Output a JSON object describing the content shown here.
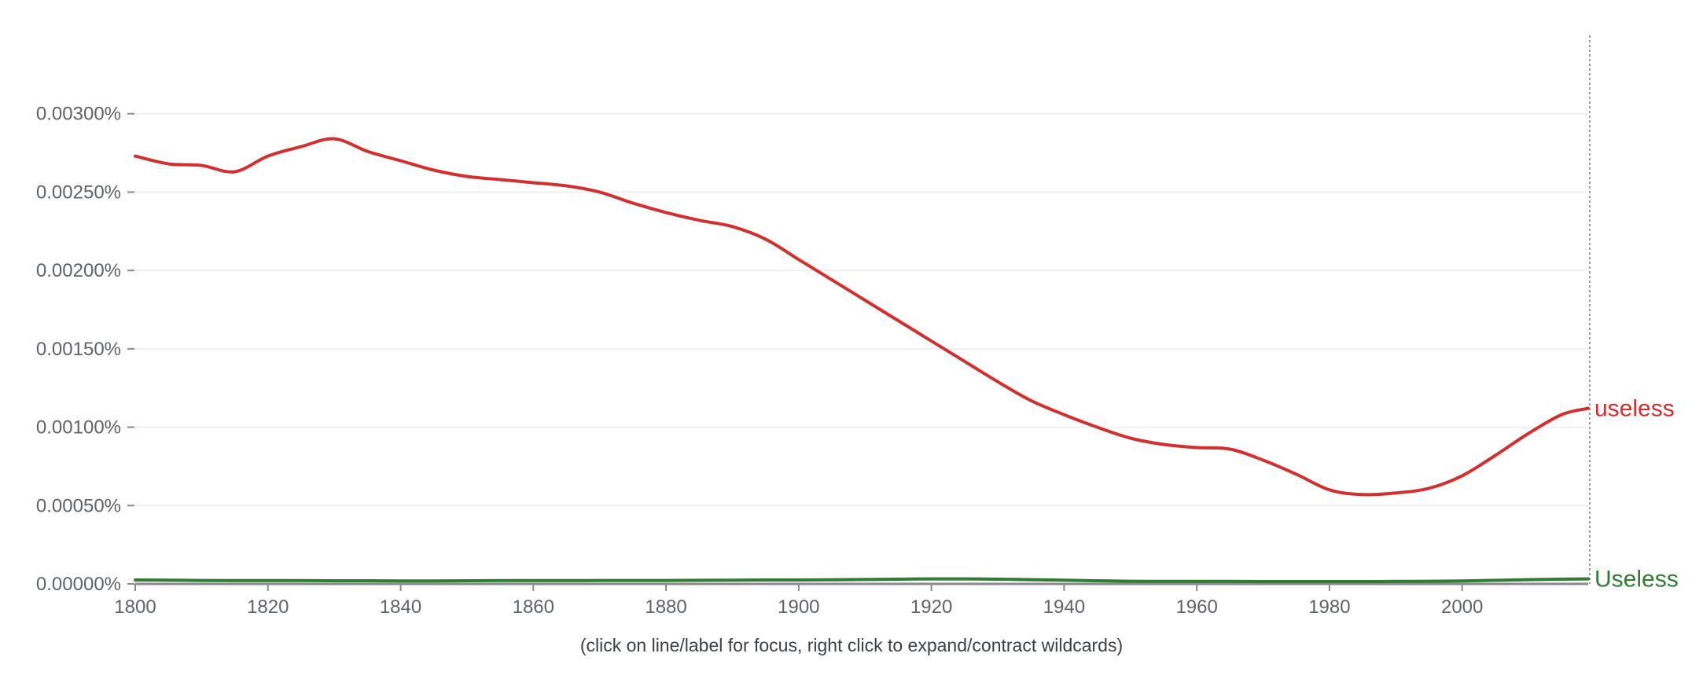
{
  "caption": "(click on line/label for focus, right click to expand/contract wildcards)",
  "chart_data": {
    "type": "line",
    "title": "",
    "xlabel": "",
    "ylabel": "",
    "xlim": [
      1800,
      2019
    ],
    "ylim": [
      0,
      0.0035
    ],
    "grid": true,
    "x_ticks": [
      1800,
      1820,
      1840,
      1860,
      1880,
      1900,
      1920,
      1940,
      1960,
      1980,
      2000
    ],
    "x_tick_labels": [
      "1800",
      "1820",
      "1840",
      "1860",
      "1880",
      "1900",
      "1920",
      "1940",
      "1960",
      "1980",
      "2000"
    ],
    "y_ticks": [
      0,
      0.0005,
      0.001,
      0.0015,
      0.002,
      0.0025,
      0.003
    ],
    "y_tick_labels": [
      "0.00000%",
      "0.00050%",
      "0.00100%",
      "0.00150%",
      "0.00200%",
      "0.00250%",
      "0.00300%"
    ],
    "x": [
      1800,
      1805,
      1810,
      1815,
      1820,
      1825,
      1830,
      1835,
      1840,
      1845,
      1850,
      1855,
      1860,
      1865,
      1870,
      1875,
      1880,
      1885,
      1890,
      1895,
      1900,
      1905,
      1910,
      1915,
      1920,
      1925,
      1930,
      1935,
      1940,
      1945,
      1950,
      1955,
      1960,
      1965,
      1970,
      1975,
      1980,
      1985,
      1990,
      1995,
      2000,
      2005,
      2010,
      2015,
      2019
    ],
    "series": [
      {
        "name": "useless",
        "color": "#d32f2f",
        "values": [
          0.00273,
          0.00268,
          0.00267,
          0.00263,
          0.00273,
          0.00279,
          0.00284,
          0.00276,
          0.0027,
          0.00264,
          0.0026,
          0.00258,
          0.00256,
          0.00254,
          0.0025,
          0.00243,
          0.00237,
          0.00232,
          0.00228,
          0.0022,
          0.00207,
          0.00194,
          0.00181,
          0.00168,
          0.00155,
          0.00142,
          0.00129,
          0.00117,
          0.00108,
          0.001,
          0.00093,
          0.00089,
          0.00087,
          0.00086,
          0.00079,
          0.0007,
          0.0006,
          0.00057,
          0.00058,
          0.00061,
          0.00069,
          0.00082,
          0.00096,
          0.00108,
          0.00112
        ]
      },
      {
        "name": "Useless",
        "color": "#2e7d32",
        "values": [
          2.5e-05,
          2.4e-05,
          2.2e-05,
          2.1e-05,
          2.1e-05,
          2.1e-05,
          2e-05,
          2e-05,
          1.9e-05,
          1.9e-05,
          2e-05,
          2.1e-05,
          2.1e-05,
          2.1e-05,
          2.2e-05,
          2.2e-05,
          2.2e-05,
          2.3e-05,
          2.4e-05,
          2.5e-05,
          2.5e-05,
          2.6e-05,
          2.8e-05,
          3e-05,
          3.2e-05,
          3.2e-05,
          3e-05,
          2.7e-05,
          2.4e-05,
          2e-05,
          1.7e-05,
          1.6e-05,
          1.6e-05,
          1.6e-05,
          1.5e-05,
          1.5e-05,
          1.5e-05,
          1.5e-05,
          1.6e-05,
          1.7e-05,
          1.9e-05,
          2.3e-05,
          2.7e-05,
          3e-05,
          3.2e-05
        ]
      }
    ]
  }
}
